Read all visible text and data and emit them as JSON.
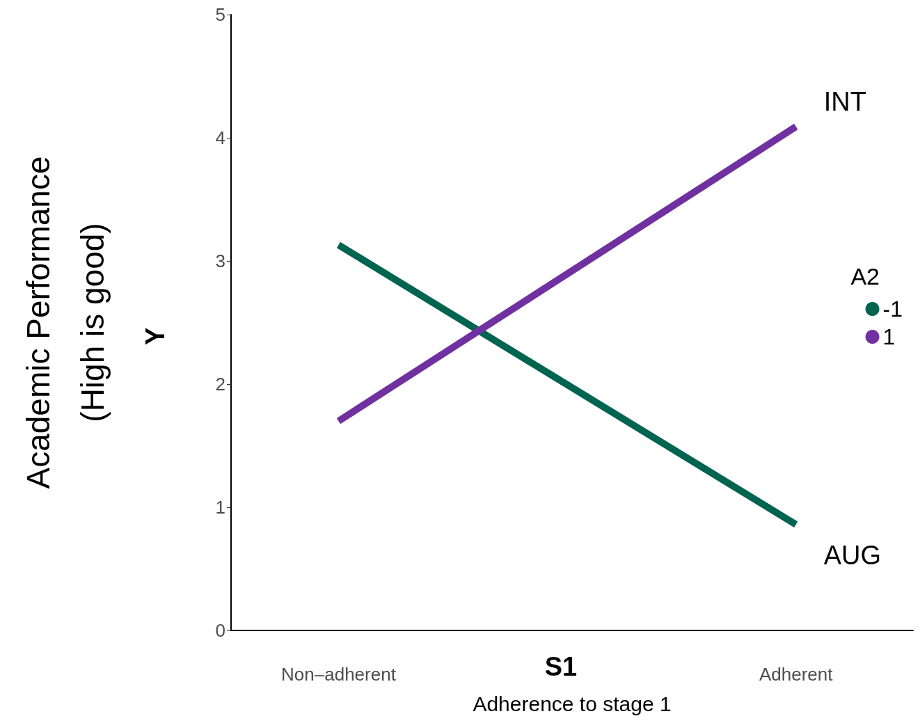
{
  "chart_data": {
    "type": "line",
    "ylabel": "Academic Performance\n(High is good)",
    "xlabel": "Adherence to stage 1",
    "legend_title": "A2",
    "categories": [
      "Non–adherent",
      "Adherent"
    ],
    "series": [
      {
        "name": "-1",
        "color": "#006450",
        "values": [
          3.13,
          0.86
        ]
      },
      {
        "name": "1",
        "color": "#7030a0",
        "values": [
          1.7,
          4.09
        ]
      }
    ],
    "ylim": [
      0,
      5
    ],
    "yticks": [
      0,
      1,
      2,
      3,
      4,
      5
    ],
    "grid": false,
    "legend": "right",
    "marker": "none",
    "line_style": "solid",
    "annotations": [
      {
        "text": "INT",
        "x": "Adherent",
        "y": 4.09
      },
      {
        "text": "AUG",
        "x": "Adherent",
        "y": 0.86
      },
      "Y",
      "S1"
    ]
  }
}
